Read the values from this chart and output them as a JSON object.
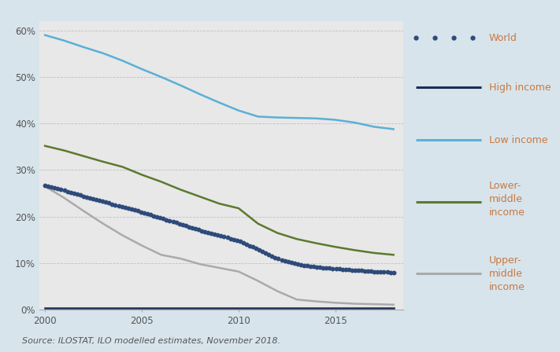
{
  "years": [
    2000,
    2001,
    2002,
    2003,
    2004,
    2005,
    2006,
    2007,
    2008,
    2009,
    2010,
    2011,
    2012,
    2013,
    2014,
    2015,
    2016,
    2017,
    2018
  ],
  "world": [
    0.267,
    0.256,
    0.244,
    0.233,
    0.221,
    0.21,
    0.197,
    0.184,
    0.171,
    0.16,
    0.148,
    0.13,
    0.11,
    0.098,
    0.092,
    0.088,
    0.085,
    0.082,
    0.08
  ],
  "high_income": [
    0.004,
    0.004,
    0.004,
    0.004,
    0.004,
    0.004,
    0.004,
    0.004,
    0.004,
    0.004,
    0.004,
    0.004,
    0.004,
    0.004,
    0.004,
    0.004,
    0.004,
    0.004,
    0.004
  ],
  "low_income": [
    0.59,
    0.578,
    0.564,
    0.551,
    0.535,
    0.517,
    0.5,
    0.482,
    0.463,
    0.445,
    0.428,
    0.415,
    0.413,
    0.412,
    0.411,
    0.408,
    0.402,
    0.393,
    0.388
  ],
  "lower_middle": [
    0.352,
    0.342,
    0.33,
    0.318,
    0.307,
    0.29,
    0.275,
    0.258,
    0.243,
    0.228,
    0.218,
    0.185,
    0.165,
    0.152,
    0.143,
    0.135,
    0.128,
    0.122,
    0.118
  ],
  "upper_middle": [
    0.265,
    0.24,
    0.212,
    0.185,
    0.16,
    0.138,
    0.118,
    0.11,
    0.098,
    0.09,
    0.082,
    0.062,
    0.04,
    0.022,
    0.018,
    0.015,
    0.013,
    0.012,
    0.011
  ],
  "world_color": "#2e4a7a",
  "high_income_color": "#1a2e55",
  "low_income_color": "#5bafd6",
  "lower_middle_color": "#5a7a2e",
  "upper_middle_color": "#aaaaaa",
  "legend_text_color": "#c87941",
  "plot_bg": "#e8e8e8",
  "outer_bg": "#d8e4ec",
  "white": "#ffffff",
  "source_text": "Source: ILOSTAT, ILO modelled estimates, November 2018.",
  "ylim": [
    0.0,
    0.62
  ],
  "yticks": [
    0.0,
    0.1,
    0.2,
    0.3,
    0.4,
    0.5,
    0.6
  ],
  "ytick_labels": [
    "0%",
    "10%",
    "20%",
    "30%",
    "40%",
    "50%",
    "60%"
  ],
  "xticks": [
    2000,
    2005,
    2010,
    2015
  ],
  "xtick_labels": [
    "2000",
    "2005",
    "2010",
    "2015"
  ]
}
